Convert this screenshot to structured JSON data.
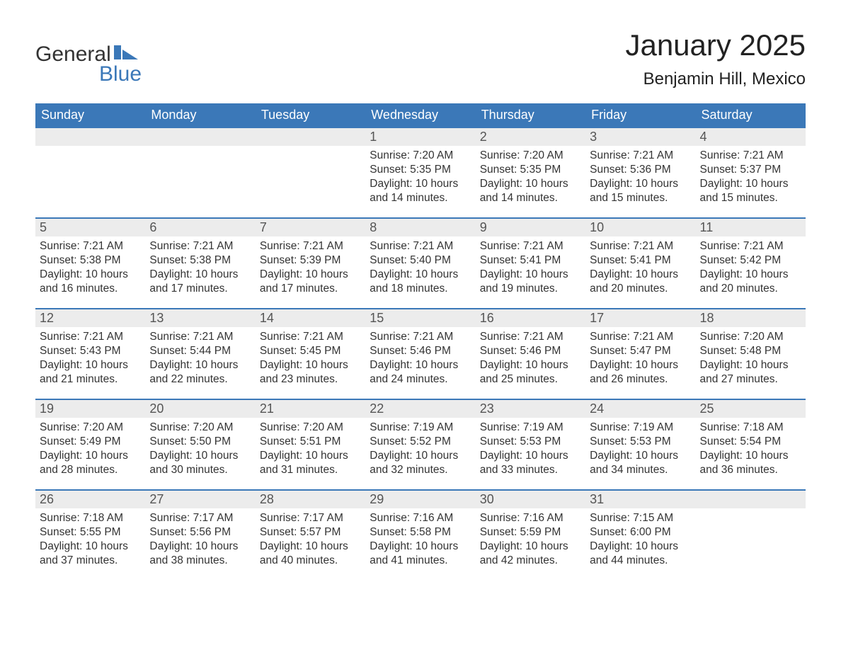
{
  "logo": {
    "word1": "General",
    "word2": "Blue",
    "accent_color": "#3b78b8"
  },
  "title": "January 2025",
  "location": "Benjamin Hill, Mexico",
  "colors": {
    "header_bg": "#3b78b8",
    "header_text": "#ffffff",
    "daynum_bg": "#ececec",
    "daynum_border": "#3b78b8",
    "body_text": "#333333",
    "background": "#ffffff"
  },
  "weekdays": [
    "Sunday",
    "Monday",
    "Tuesday",
    "Wednesday",
    "Thursday",
    "Friday",
    "Saturday"
  ],
  "weeks": [
    [
      null,
      null,
      null,
      {
        "n": "1",
        "sr": "7:20 AM",
        "ss": "5:35 PM",
        "dl": "10 hours and 14 minutes."
      },
      {
        "n": "2",
        "sr": "7:20 AM",
        "ss": "5:35 PM",
        "dl": "10 hours and 14 minutes."
      },
      {
        "n": "3",
        "sr": "7:21 AM",
        "ss": "5:36 PM",
        "dl": "10 hours and 15 minutes."
      },
      {
        "n": "4",
        "sr": "7:21 AM",
        "ss": "5:37 PM",
        "dl": "10 hours and 15 minutes."
      }
    ],
    [
      {
        "n": "5",
        "sr": "7:21 AM",
        "ss": "5:38 PM",
        "dl": "10 hours and 16 minutes."
      },
      {
        "n": "6",
        "sr": "7:21 AM",
        "ss": "5:38 PM",
        "dl": "10 hours and 17 minutes."
      },
      {
        "n": "7",
        "sr": "7:21 AM",
        "ss": "5:39 PM",
        "dl": "10 hours and 17 minutes."
      },
      {
        "n": "8",
        "sr": "7:21 AM",
        "ss": "5:40 PM",
        "dl": "10 hours and 18 minutes."
      },
      {
        "n": "9",
        "sr": "7:21 AM",
        "ss": "5:41 PM",
        "dl": "10 hours and 19 minutes."
      },
      {
        "n": "10",
        "sr": "7:21 AM",
        "ss": "5:41 PM",
        "dl": "10 hours and 20 minutes."
      },
      {
        "n": "11",
        "sr": "7:21 AM",
        "ss": "5:42 PM",
        "dl": "10 hours and 20 minutes."
      }
    ],
    [
      {
        "n": "12",
        "sr": "7:21 AM",
        "ss": "5:43 PM",
        "dl": "10 hours and 21 minutes."
      },
      {
        "n": "13",
        "sr": "7:21 AM",
        "ss": "5:44 PM",
        "dl": "10 hours and 22 minutes."
      },
      {
        "n": "14",
        "sr": "7:21 AM",
        "ss": "5:45 PM",
        "dl": "10 hours and 23 minutes."
      },
      {
        "n": "15",
        "sr": "7:21 AM",
        "ss": "5:46 PM",
        "dl": "10 hours and 24 minutes."
      },
      {
        "n": "16",
        "sr": "7:21 AM",
        "ss": "5:46 PM",
        "dl": "10 hours and 25 minutes."
      },
      {
        "n": "17",
        "sr": "7:21 AM",
        "ss": "5:47 PM",
        "dl": "10 hours and 26 minutes."
      },
      {
        "n": "18",
        "sr": "7:20 AM",
        "ss": "5:48 PM",
        "dl": "10 hours and 27 minutes."
      }
    ],
    [
      {
        "n": "19",
        "sr": "7:20 AM",
        "ss": "5:49 PM",
        "dl": "10 hours and 28 minutes."
      },
      {
        "n": "20",
        "sr": "7:20 AM",
        "ss": "5:50 PM",
        "dl": "10 hours and 30 minutes."
      },
      {
        "n": "21",
        "sr": "7:20 AM",
        "ss": "5:51 PM",
        "dl": "10 hours and 31 minutes."
      },
      {
        "n": "22",
        "sr": "7:19 AM",
        "ss": "5:52 PM",
        "dl": "10 hours and 32 minutes."
      },
      {
        "n": "23",
        "sr": "7:19 AM",
        "ss": "5:53 PM",
        "dl": "10 hours and 33 minutes."
      },
      {
        "n": "24",
        "sr": "7:19 AM",
        "ss": "5:53 PM",
        "dl": "10 hours and 34 minutes."
      },
      {
        "n": "25",
        "sr": "7:18 AM",
        "ss": "5:54 PM",
        "dl": "10 hours and 36 minutes."
      }
    ],
    [
      {
        "n": "26",
        "sr": "7:18 AM",
        "ss": "5:55 PM",
        "dl": "10 hours and 37 minutes."
      },
      {
        "n": "27",
        "sr": "7:17 AM",
        "ss": "5:56 PM",
        "dl": "10 hours and 38 minutes."
      },
      {
        "n": "28",
        "sr": "7:17 AM",
        "ss": "5:57 PM",
        "dl": "10 hours and 40 minutes."
      },
      {
        "n": "29",
        "sr": "7:16 AM",
        "ss": "5:58 PM",
        "dl": "10 hours and 41 minutes."
      },
      {
        "n": "30",
        "sr": "7:16 AM",
        "ss": "5:59 PM",
        "dl": "10 hours and 42 minutes."
      },
      {
        "n": "31",
        "sr": "7:15 AM",
        "ss": "6:00 PM",
        "dl": "10 hours and 44 minutes."
      },
      null
    ]
  ],
  "labels": {
    "sunrise": "Sunrise:",
    "sunset": "Sunset:",
    "daylight": "Daylight:"
  }
}
